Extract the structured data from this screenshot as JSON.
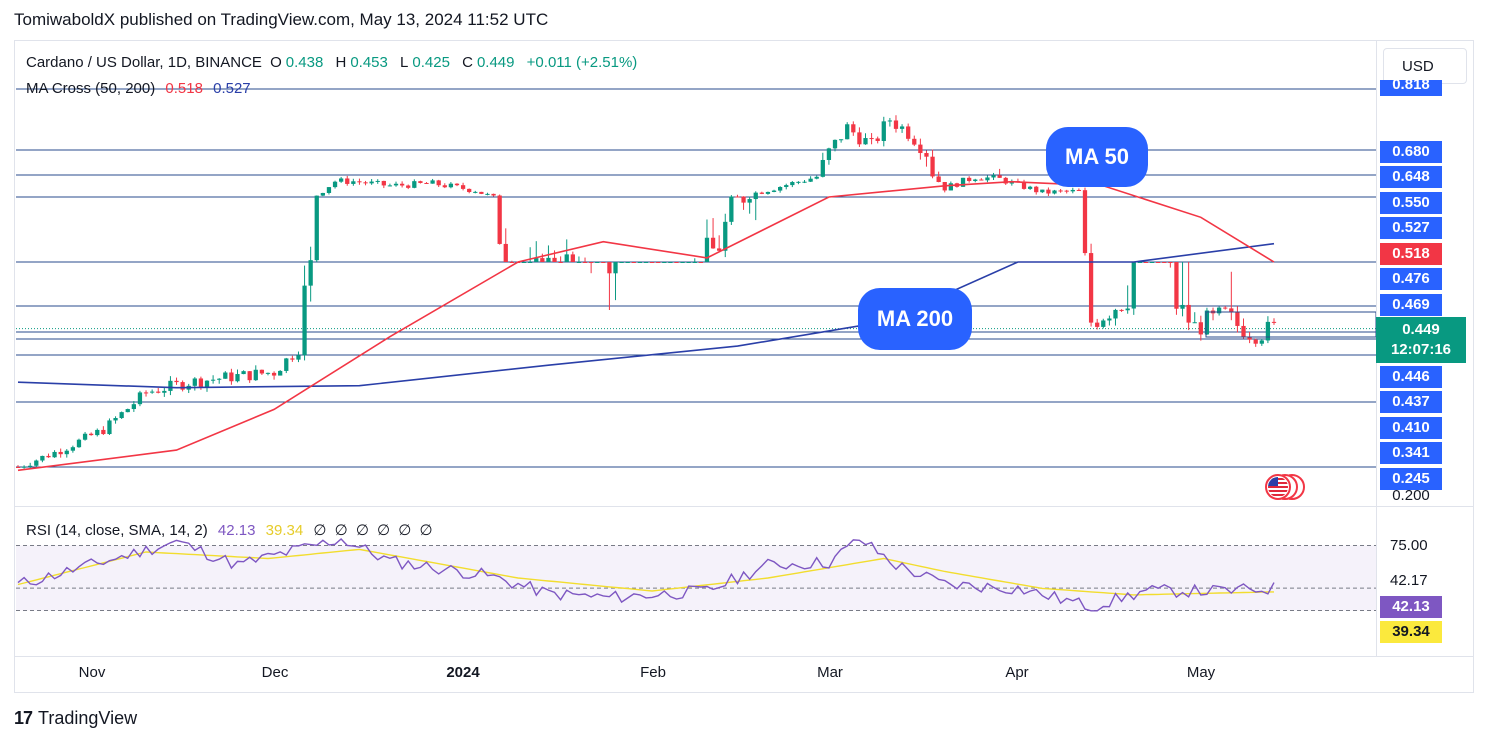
{
  "publisher_line": "TomiwaboldX published on TradingView.com, May 13, 2024 11:52 UTC",
  "legend": {
    "symbol": "Cardano / US Dollar, 1D, BINANCE",
    "o_label": "O",
    "o_value": "0.438",
    "h_label": "H",
    "h_value": "0.453",
    "l_label": "L",
    "l_value": "0.425",
    "c_label": "C",
    "c_value": "0.449",
    "change": "+0.011 (+2.51%)"
  },
  "ma_legend": {
    "name": "MA Cross (50, 200)",
    "ma50_value": "0.518",
    "ma200_value": "0.527"
  },
  "rsi_legend": {
    "name": "RSI (14, close, SMA, 14, 2)",
    "rsi_value": "42.13",
    "sma_value": "39.34",
    "empty_values": "∅ ∅ ∅ ∅ ∅ ∅"
  },
  "currency_button": "USD",
  "price_axis": {
    "top_partial": "0.818",
    "tags": [
      "0.680",
      "0.648",
      "0.550",
      "0.527",
      "0.518",
      "0.476",
      "0.469",
      "0.446",
      "0.437",
      "0.410",
      "0.341",
      "0.245"
    ],
    "bottom_label": "0.200",
    "current_price": "0.449",
    "countdown": "12:07:16"
  },
  "rsi_axis": {
    "upper": "75.00",
    "middle": "42.17",
    "rsi_tag": "42.13",
    "sma_tag": "39.34"
  },
  "time_axis": [
    {
      "label": "Nov",
      "bold": false
    },
    {
      "label": "Dec",
      "bold": false
    },
    {
      "label": "2024",
      "bold": true
    },
    {
      "label": "Feb",
      "bold": false
    },
    {
      "label": "Mar",
      "bold": false
    },
    {
      "label": "Apr",
      "bold": false
    },
    {
      "label": "May",
      "bold": false
    }
  ],
  "callouts": {
    "ma50": "MA 50",
    "ma200": "MA 200"
  },
  "footer": "TradingView",
  "colors": {
    "up": "#089981",
    "down": "#f23645",
    "ma50": "#f23645",
    "ma200": "#2a3fa8",
    "level_line": "#2a4b8d",
    "rsi_line": "#7e57c2",
    "rsi_sma": "#f2dd2e",
    "accent": "#2962ff"
  },
  "chart_data": {
    "type": "candlestick",
    "title": "Cardano / US Dollar, 1D, BINANCE",
    "x_range": [
      "2023-10-20",
      "2024-05-13"
    ],
    "ylim": [
      0.2,
      0.818
    ],
    "horizontal_levels": [
      0.818,
      0.68,
      0.648,
      0.55,
      0.476,
      0.469,
      0.446,
      0.437,
      0.41,
      0.341,
      0.245
    ],
    "close_path": [
      [
        "2023-10-20",
        0.245
      ],
      [
        "2023-10-27",
        0.27
      ],
      [
        "2023-11-03",
        0.3
      ],
      [
        "2023-11-10",
        0.355
      ],
      [
        "2023-11-17",
        0.37
      ],
      [
        "2023-11-24",
        0.378
      ],
      [
        "2023-12-01",
        0.385
      ],
      [
        "2023-12-05",
        0.42
      ],
      [
        "2023-12-08",
        0.56
      ],
      [
        "2023-12-11",
        0.62
      ],
      [
        "2023-12-14",
        0.62
      ],
      [
        "2023-12-20",
        0.6
      ],
      [
        "2023-12-27",
        0.61
      ],
      [
        "2024-01-03",
        0.58
      ],
      [
        "2024-01-10",
        0.5
      ],
      [
        "2024-01-17",
        0.52
      ],
      [
        "2024-01-24",
        0.48
      ],
      [
        "2024-01-31",
        0.5
      ],
      [
        "2024-02-07",
        0.5
      ],
      [
        "2024-02-14",
        0.54
      ],
      [
        "2024-02-21",
        0.59
      ],
      [
        "2024-02-28",
        0.64
      ],
      [
        "2024-03-04",
        0.73
      ],
      [
        "2024-03-08",
        0.69
      ],
      [
        "2024-03-11",
        0.75
      ],
      [
        "2024-03-14",
        0.72
      ],
      [
        "2024-03-17",
        0.68
      ],
      [
        "2024-03-20",
        0.59
      ],
      [
        "2024-03-25",
        0.64
      ],
      [
        "2024-03-29",
        0.63
      ],
      [
        "2024-04-05",
        0.57
      ],
      [
        "2024-04-11",
        0.575
      ],
      [
        "2024-04-13",
        0.455
      ],
      [
        "2024-04-20",
        0.48
      ],
      [
        "2024-04-24",
        0.49
      ],
      [
        "2024-04-30",
        0.45
      ],
      [
        "2024-05-05",
        0.46
      ],
      [
        "2024-05-10",
        0.44
      ],
      [
        "2024-05-13",
        0.449
      ]
    ],
    "ma50_path": [
      [
        "2023-10-20",
        0.24
      ],
      [
        "2023-11-15",
        0.27
      ],
      [
        "2023-12-01",
        0.33
      ],
      [
        "2023-12-20",
        0.44
      ],
      [
        "2024-01-10",
        0.505
      ],
      [
        "2024-01-24",
        0.528
      ],
      [
        "2024-02-10",
        0.52
      ],
      [
        "2024-03-01",
        0.55
      ],
      [
        "2024-03-20",
        0.6
      ],
      [
        "2024-03-31",
        0.618
      ],
      [
        "2024-04-15",
        0.6
      ],
      [
        "2024-05-01",
        0.54
      ],
      [
        "2024-05-13",
        0.518
      ]
    ],
    "ma200_path": [
      [
        "2023-10-20",
        0.37
      ],
      [
        "2023-11-15",
        0.362
      ],
      [
        "2023-12-15",
        0.365
      ],
      [
        "2024-01-15",
        0.395
      ],
      [
        "2024-02-15",
        0.425
      ],
      [
        "2024-03-10",
        0.455
      ],
      [
        "2024-04-01",
        0.485
      ],
      [
        "2024-04-20",
        0.505
      ],
      [
        "2024-05-13",
        0.527
      ]
    ],
    "rsi": {
      "ylim": [
        0,
        100
      ],
      "levels": [
        75.0,
        42.17
      ],
      "rsi_path": [
        [
          "2023-10-20",
          45
        ],
        [
          "2023-11-05",
          65
        ],
        [
          "2023-11-15",
          78
        ],
        [
          "2023-11-25",
          60
        ],
        [
          "2023-12-05",
          72
        ],
        [
          "2023-12-12",
          80
        ],
        [
          "2023-12-20",
          63
        ],
        [
          "2024-01-05",
          52
        ],
        [
          "2024-01-15",
          38
        ],
        [
          "2024-01-25",
          35
        ],
        [
          "2024-02-10",
          40
        ],
        [
          "2024-02-20",
          60
        ],
        [
          "2024-03-01",
          62
        ],
        [
          "2024-03-06",
          80
        ],
        [
          "2024-03-12",
          60
        ],
        [
          "2024-03-20",
          45
        ],
        [
          "2024-04-01",
          42
        ],
        [
          "2024-04-13",
          28
        ],
        [
          "2024-04-22",
          40
        ],
        [
          "2024-05-05",
          40
        ],
        [
          "2024-05-13",
          42.13
        ]
      ],
      "sma_path": [
        [
          "2023-10-20",
          45
        ],
        [
          "2023-11-10",
          70
        ],
        [
          "2023-11-30",
          65
        ],
        [
          "2023-12-15",
          72
        ],
        [
          "2024-01-10",
          50
        ],
        [
          "2024-02-01",
          40
        ],
        [
          "2024-02-20",
          50
        ],
        [
          "2024-03-10",
          65
        ],
        [
          "2024-03-20",
          55
        ],
        [
          "2024-04-05",
          42
        ],
        [
          "2024-04-20",
          37
        ],
        [
          "2024-05-13",
          39.34
        ]
      ]
    }
  }
}
